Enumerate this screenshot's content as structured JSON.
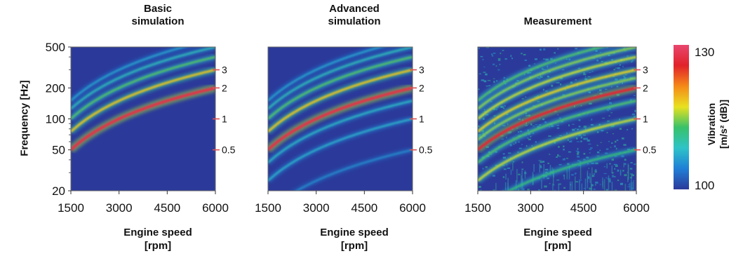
{
  "chart_data": {
    "type": "heatmap",
    "y_axis_title": "Frequency [Hz]",
    "x_axis_title_line1": "Engine speed",
    "x_axis_title_line2": "[rpm]",
    "xlim": [
      1500,
      6000
    ],
    "ylim": [
      20,
      500
    ],
    "y_scale": "log",
    "x_ticks": [
      "1500",
      "3000",
      "4500",
      "6000"
    ],
    "y_ticks": [
      "500",
      "200",
      "100",
      "50",
      "20"
    ],
    "order_labels": [
      "3",
      "2",
      "1",
      "0.5"
    ],
    "colorbar": {
      "title_line1": "Vibration",
      "title_line2": "[m/s² (dB)]",
      "max_label": "130",
      "min_label": "100",
      "min": 100,
      "max": 130,
      "colors": [
        "#2b3a9a",
        "#1f7fd6",
        "#2ec3c8",
        "#38c26a",
        "#e8e21f",
        "#f58a18",
        "#e1222a",
        "#e8466e"
      ]
    },
    "panels": [
      {
        "title_line1": "Basic",
        "title_line2": "simulation",
        "orders": [
          {
            "order": 0.5,
            "level": 0
          },
          {
            "order": 1,
            "level": 0
          },
          {
            "order": 1.5,
            "level": 0
          },
          {
            "order": 2,
            "level": 0.92
          },
          {
            "order": 3,
            "level": 0.62
          },
          {
            "order": 4,
            "level": 0.45
          },
          {
            "order": 5,
            "level": 0.32
          },
          {
            "order": 6,
            "level": 0.25
          }
        ]
      },
      {
        "title_line1": "Advanced",
        "title_line2": "simulation",
        "orders": [
          {
            "order": 0.5,
            "level": 0.2
          },
          {
            "order": 1,
            "level": 0.28
          },
          {
            "order": 1.5,
            "level": 0.3
          },
          {
            "order": 2,
            "level": 0.92
          },
          {
            "order": 3,
            "level": 0.62
          },
          {
            "order": 4,
            "level": 0.45
          },
          {
            "order": 5,
            "level": 0.32
          },
          {
            "order": 6,
            "level": 0.25
          }
        ]
      },
      {
        "title_line1": "",
        "title_line2": "Measurement",
        "orders": [
          {
            "order": 0.5,
            "level": 0.42
          },
          {
            "order": 1,
            "level": 0.55
          },
          {
            "order": 1.5,
            "level": 0.45
          },
          {
            "order": 2,
            "level": 0.88
          },
          {
            "order": 2.5,
            "level": 0.5
          },
          {
            "order": 3,
            "level": 0.6
          },
          {
            "order": 4,
            "level": 0.55
          },
          {
            "order": 5,
            "level": 0.5
          },
          {
            "order": 6,
            "level": 0.45
          }
        ]
      }
    ]
  }
}
